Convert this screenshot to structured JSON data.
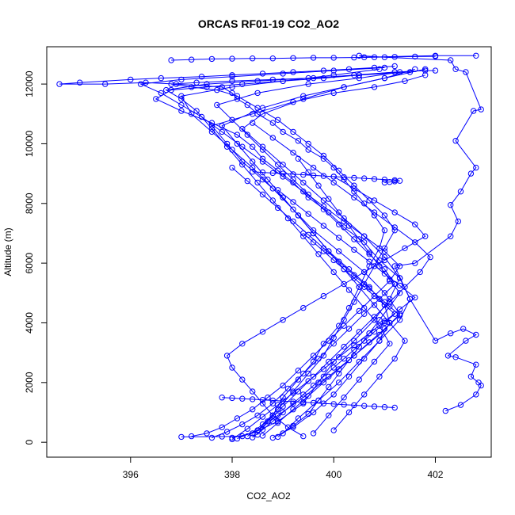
{
  "chart_data": {
    "type": "scatter",
    "title": "ORCAS RF01-19 CO2_AO2",
    "xlabel": "CO2_AO2",
    "ylabel": "Altitude (m)",
    "xlim": [
      394.35,
      403.1
    ],
    "ylim": [
      -500,
      13250
    ],
    "xticks": [
      "396",
      "398",
      "400",
      "402"
    ],
    "yticks": [
      "0",
      "2000",
      "4000",
      "6000",
      "8000",
      "10000",
      "12000"
    ],
    "grid": false,
    "legend": "none",
    "marker": "open-circle",
    "connected": true,
    "series_color": "#0000ff",
    "series": [
      {
        "x": [
          402.2,
          402.5,
          402.8,
          402.9,
          402.85,
          402.7,
          402.8,
          402.4,
          402.25,
          402.6,
          402.8,
          402.55,
          402.3,
          402.0,
          401.5,
          401.2,
          401.6,
          402.3,
          402.45,
          402.3,
          402.5,
          402.7,
          402.8,
          402.4,
          402.75,
          402.9,
          402.6,
          402.4,
          402.3,
          401.0,
          400.5,
          400.6,
          402.0,
          402.8
        ],
        "y": [
          1050,
          1250,
          1600,
          1900,
          2000,
          2200,
          2600,
          2850,
          2900,
          3400,
          3600,
          3800,
          3650,
          3400,
          4800,
          5900,
          6000,
          6900,
          7400,
          7950,
          8400,
          9000,
          9200,
          10100,
          11100,
          11150,
          12400,
          12500,
          12800,
          12900,
          12950,
          12900,
          12950,
          12950
        ]
      },
      {
        "x": [
          397.0,
          397.8,
          398.2,
          398.5,
          398.8,
          399.0,
          399.3,
          399.6,
          399.8,
          400.1,
          400.3,
          400.5,
          400.7,
          400.9,
          401.0,
          400.8,
          400.6,
          400.4,
          400.2,
          400.0,
          399.8,
          399.5,
          399.3,
          399.0,
          398.8,
          398.5,
          398.3,
          398.1,
          398.0,
          397.8,
          396.9,
          396.3,
          395.5,
          394.6,
          395.0,
          396.0,
          396.6,
          397.4,
          398.0,
          398.6,
          399.2,
          399.8,
          400.3,
          400.8,
          401.2
        ],
        "y": [
          180,
          190,
          200,
          400,
          900,
          1500,
          2100,
          2700,
          3300,
          3900,
          4500,
          5200,
          5900,
          6500,
          7100,
          7600,
          8000,
          8400,
          8800,
          9200,
          9500,
          9800,
          10100,
          10400,
          10700,
          11000,
          11300,
          11500,
          11700,
          11900,
          12000,
          12050,
          12000,
          12000,
          12050,
          12150,
          12200,
          12250,
          12300,
          12350,
          12400,
          12450,
          12500,
          12550,
          12600
        ]
      },
      {
        "x": [
          398.0,
          398.4,
          398.9,
          399.4,
          399.7,
          400.0,
          400.4,
          400.8,
          401.1,
          401.3,
          400.9,
          400.6,
          400.2,
          399.9,
          399.5,
          399.2,
          398.9,
          398.6,
          398.4,
          398.1,
          397.6,
          397.0,
          396.5,
          396.8,
          397.5,
          398.2,
          399.0,
          399.8,
          400.5,
          401.2,
          401.8,
          402.0
        ],
        "y": [
          150,
          300,
          700,
          1300,
          2000,
          2700,
          3400,
          4100,
          4800,
          5500,
          6100,
          6700,
          7200,
          7700,
          8200,
          8700,
          9100,
          9500,
          9900,
          10300,
          10700,
          11100,
          11500,
          11800,
          11900,
          12000,
          12100,
          12200,
          12300,
          12400,
          12450,
          12450
        ]
      },
      {
        "x": [
          398.3,
          398.6,
          398.9,
          399.2,
          399.5,
          399.8,
          400.0,
          400.2,
          400.4,
          400.6,
          400.8,
          401.0,
          401.2,
          401.0,
          400.7,
          400.4,
          400.1,
          399.8,
          399.5,
          399.2,
          398.9,
          398.5,
          398.1,
          397.7,
          397.2,
          396.8,
          397.3,
          398.0,
          398.8,
          399.6,
          400.4,
          401.2
        ],
        "y": [
          200,
          600,
          1100,
          1700,
          2300,
          2900,
          3500,
          4100,
          4700,
          5300,
          5900,
          6500,
          7100,
          7600,
          8100,
          8600,
          9100,
          9600,
          10000,
          10400,
          10800,
          11200,
          11600,
          11800,
          11900,
          12000,
          12050,
          12100,
          12150,
          12200,
          12300,
          12400
        ]
      },
      {
        "x": [
          398.8,
          399.2,
          399.6,
          400.0,
          400.3,
          400.6,
          400.9,
          401.1,
          401.0,
          400.7,
          400.3,
          399.9,
          399.6,
          399.3,
          399.0,
          398.6,
          398.2,
          397.9,
          397.6,
          398.4,
          399.2,
          400.0,
          400.8,
          401.4,
          401.8
        ],
        "y": [
          150,
          500,
          1000,
          1600,
          2200,
          2800,
          3400,
          4000,
          4600,
          5200,
          5800,
          6400,
          7000,
          7600,
          8200,
          8800,
          9400,
          10000,
          10600,
          11000,
          11400,
          11700,
          11900,
          12100,
          12300
        ]
      },
      {
        "x": [
          399.0,
          399.3,
          399.7,
          400.1,
          400.5,
          400.9,
          401.3,
          401.5,
          401.3,
          401.0,
          400.6,
          400.2,
          399.8,
          399.4,
          399.0,
          398.6,
          398.2,
          398.6,
          399.4,
          400.2,
          401.0,
          401.6
        ],
        "y": [
          300,
          800,
          1400,
          2000,
          2700,
          3400,
          4100,
          4800,
          5500,
          6200,
          6900,
          7500,
          8100,
          8700,
          9300,
          9900,
          10500,
          11000,
          11500,
          11900,
          12200,
          12500
        ]
      },
      {
        "x": [
          398.1,
          398.5,
          398.9,
          399.4,
          399.9,
          400.4,
          400.9,
          401.3,
          401.0,
          400.6,
          400.1,
          399.6,
          399.2,
          398.8,
          398.4,
          398.0,
          397.6,
          397.2,
          397.0,
          398.0,
          399.0,
          400.0,
          400.9
        ],
        "y": [
          120,
          400,
          900,
          1500,
          2200,
          2900,
          3600,
          4300,
          5000,
          5700,
          6400,
          7100,
          7800,
          8500,
          9200,
          9800,
          10400,
          11000,
          11600,
          11900,
          12100,
          12300,
          12500
        ]
      },
      {
        "x": [
          399.4,
          399.1,
          398.8,
          398.6,
          398.4,
          398.2,
          398.0,
          397.9,
          398.2,
          398.6,
          399.0,
          399.4,
          399.8,
          400.2,
          400.6,
          401.0,
          401.4,
          401.8,
          401.6,
          401.2,
          400.8,
          400.4,
          400.0
        ],
        "y": [
          200,
          500,
          900,
          1300,
          1700,
          2100,
          2500,
          2900,
          3300,
          3700,
          4100,
          4500,
          4900,
          5300,
          5700,
          6100,
          6500,
          6900,
          7300,
          7700,
          8100,
          8500,
          8900
        ]
      },
      {
        "x": [
          398.5,
          398.7,
          399.0,
          399.3,
          399.6,
          399.9,
          400.2,
          400.5,
          400.8,
          401.1,
          401.4,
          401.7,
          401.9,
          401.6,
          401.2,
          400.8,
          400.4,
          400.0,
          399.6,
          399.2,
          398.8,
          398.4
        ],
        "y": [
          250,
          700,
          1200,
          1700,
          2200,
          2700,
          3200,
          3700,
          4200,
          4700,
          5200,
          5700,
          6200,
          6700,
          7200,
          7700,
          8200,
          8700,
          9200,
          9700,
          10200,
          10700
        ]
      },
      {
        "x": [
          397.6,
          397.9,
          398.2,
          398.5,
          398.8,
          399.1,
          399.4,
          399.7,
          400.0,
          400.3,
          400.6,
          400.9,
          401.2,
          401.0,
          400.7,
          400.4,
          400.1,
          399.8,
          399.5,
          399.2,
          398.9,
          398.6,
          398.3,
          398.0,
          397.7,
          398.5,
          399.5,
          400.5,
          401.3
        ],
        "y": [
          150,
          350,
          600,
          900,
          1300,
          1800,
          2300,
          2800,
          3300,
          3800,
          4300,
          4800,
          5300,
          5800,
          6300,
          6800,
          7300,
          7800,
          8300,
          8800,
          9300,
          9800,
          10300,
          10800,
          11300,
          11700,
          12000,
          12200,
          12400
        ]
      },
      {
        "x": [
          398.9,
          399.2,
          399.5,
          399.7,
          399.9,
          400.1,
          400.3,
          400.5,
          400.7,
          400.9,
          401.1,
          401.3,
          401.1,
          400.9,
          400.7,
          400.5,
          400.3,
          400.1,
          399.9,
          399.7,
          399.5,
          399.3
        ],
        "y": [
          180,
          550,
          950,
          1400,
          1850,
          2300,
          2750,
          3200,
          3650,
          4100,
          4550,
          5000,
          5450,
          5900,
          6350,
          6800,
          7250,
          7700,
          8150,
          8600,
          9050,
          9500
        ]
      },
      {
        "x": [
          397.2,
          397.5,
          397.8,
          398.1,
          398.4,
          398.7,
          399.0,
          399.3,
          399.6,
          399.9,
          400.2,
          400.5,
          400.8,
          401.1,
          401.3,
          401.0,
          400.6,
          400.2,
          399.8,
          399.4,
          399.0,
          398.6,
          398.2,
          397.8,
          397.4,
          397.0,
          396.6,
          396.2,
          397.0,
          398.0,
          399.0,
          400.0,
          401.0
        ],
        "y": [
          200,
          300,
          500,
          800,
          1100,
          1500,
          1900,
          2400,
          2900,
          3400,
          3900,
          4400,
          4900,
          5400,
          5900,
          6400,
          6900,
          7400,
          7900,
          8400,
          8900,
          9400,
          9900,
          10400,
          10900,
          11300,
          11700,
          12000,
          12150,
          12250,
          12350,
          12450,
          12550
        ]
      },
      {
        "x": [
          398.0,
          398.3,
          398.6,
          398.9,
          399.2,
          399.5,
          399.8,
          400.1,
          400.4,
          400.7,
          401.0,
          401.3,
          401.6,
          401.3,
          401.0,
          400.7,
          400.4,
          400.1,
          399.8,
          399.5,
          399.2,
          398.9
        ],
        "y": [
          100,
          450,
          850,
          1250,
          1650,
          2050,
          2450,
          2850,
          3250,
          3650,
          4050,
          4450,
          4850,
          5250,
          5650,
          6050,
          6450,
          6850,
          7250,
          7650,
          8050,
          8450
        ]
      },
      {
        "x": [
          399.6,
          399.9,
          400.2,
          400.5,
          400.8,
          401.1,
          400.9,
          400.6,
          400.3,
          400.0,
          399.7,
          399.4,
          399.1,
          398.8,
          398.5,
          398.2,
          397.9,
          397.6,
          397.3,
          397.0,
          396.7,
          397.5,
          398.5,
          399.5,
          400.5,
          401.5
        ],
        "y": [
          300,
          900,
          1500,
          2100,
          2700,
          3300,
          3900,
          4500,
          5100,
          5700,
          6300,
          6900,
          7500,
          8100,
          8700,
          9300,
          9900,
          10500,
          11100,
          11500,
          11800,
          12000,
          12100,
          12200,
          12300,
          12400
        ]
      },
      {
        "x": [
          398.6,
          398.9,
          399.2,
          399.5,
          399.8,
          400.1,
          400.4,
          400.7,
          401.0,
          401.3,
          401.0,
          400.7,
          400.4,
          400.1,
          399.8,
          399.5,
          399.2,
          398.9,
          398.6,
          398.3,
          398.0
        ],
        "y": [
          220,
          650,
          1100,
          1550,
          2000,
          2450,
          2900,
          3350,
          3800,
          4250,
          4700,
          5150,
          5600,
          6050,
          6500,
          6950,
          7400,
          7850,
          8300,
          8750,
          9200
        ]
      },
      {
        "x": [
          400.0,
          400.3,
          400.6,
          400.9,
          401.2,
          401.4,
          401.1,
          400.8,
          400.5,
          400.2,
          399.9,
          399.6,
          399.3,
          399.0,
          398.7,
          398.4,
          398.1,
          397.8,
          398.6,
          399.4,
          400.2,
          401.0,
          401.8
        ],
        "y": [
          400,
          1000,
          1600,
          2200,
          2800,
          3400,
          4000,
          4600,
          5200,
          5800,
          6400,
          7000,
          7600,
          8200,
          8800,
          9400,
          10000,
          10600,
          11200,
          11600,
          11900,
          12200,
          12500
        ]
      },
      {
        "x": [
          398.4,
          398.6,
          398.8,
          399.0,
          399.2,
          399.4,
          399.6,
          399.8,
          400.0,
          400.2,
          400.4,
          400.6,
          400.8,
          401.0,
          401.2,
          401.0,
          400.8,
          400.6,
          400.4,
          400.2,
          400.0,
          399.8,
          399.6,
          399.4
        ],
        "y": [
          160,
          420,
          700,
          1000,
          1300,
          1600,
          1900,
          2200,
          2500,
          2800,
          3100,
          3400,
          3700,
          4000,
          4300,
          4600,
          4900,
          5200,
          5500,
          5800,
          6100,
          6400,
          6700,
          7000
        ]
      },
      {
        "x": [
          401.0,
          401.1,
          401.2,
          401.3,
          401.2,
          401.0,
          400.8,
          400.6,
          400.4,
          400.2,
          400.0,
          399.8,
          399.6,
          399.4,
          399.2,
          399.0,
          398.8,
          398.6,
          398.4
        ],
        "y": [
          8700,
          8720,
          8740,
          8760,
          8780,
          8800,
          8820,
          8840,
          8860,
          8880,
          8900,
          8920,
          8940,
          8960,
          8980,
          9000,
          9020,
          9040,
          9060
        ]
      },
      {
        "x": [
          397.8,
          398.0,
          398.2,
          398.4,
          398.6,
          398.8,
          399.0,
          399.2,
          399.4,
          399.6,
          399.8,
          400.0,
          400.2,
          400.4,
          400.6,
          400.8,
          401.0,
          401.2
        ],
        "y": [
          1500,
          1480,
          1460,
          1440,
          1420,
          1400,
          1380,
          1360,
          1340,
          1320,
          1300,
          1280,
          1260,
          1240,
          1220,
          1200,
          1180,
          1160
        ]
      },
      {
        "x": [
          396.8,
          397.2,
          397.6,
          398.0,
          398.4,
          398.8,
          399.2,
          399.6,
          400.0,
          400.4,
          400.8,
          401.2,
          401.6,
          402.0
        ],
        "y": [
          12800,
          12820,
          12840,
          12850,
          12860,
          12860,
          12870,
          12880,
          12880,
          12890,
          12900,
          12910,
          12920,
          12930
        ]
      }
    ]
  }
}
